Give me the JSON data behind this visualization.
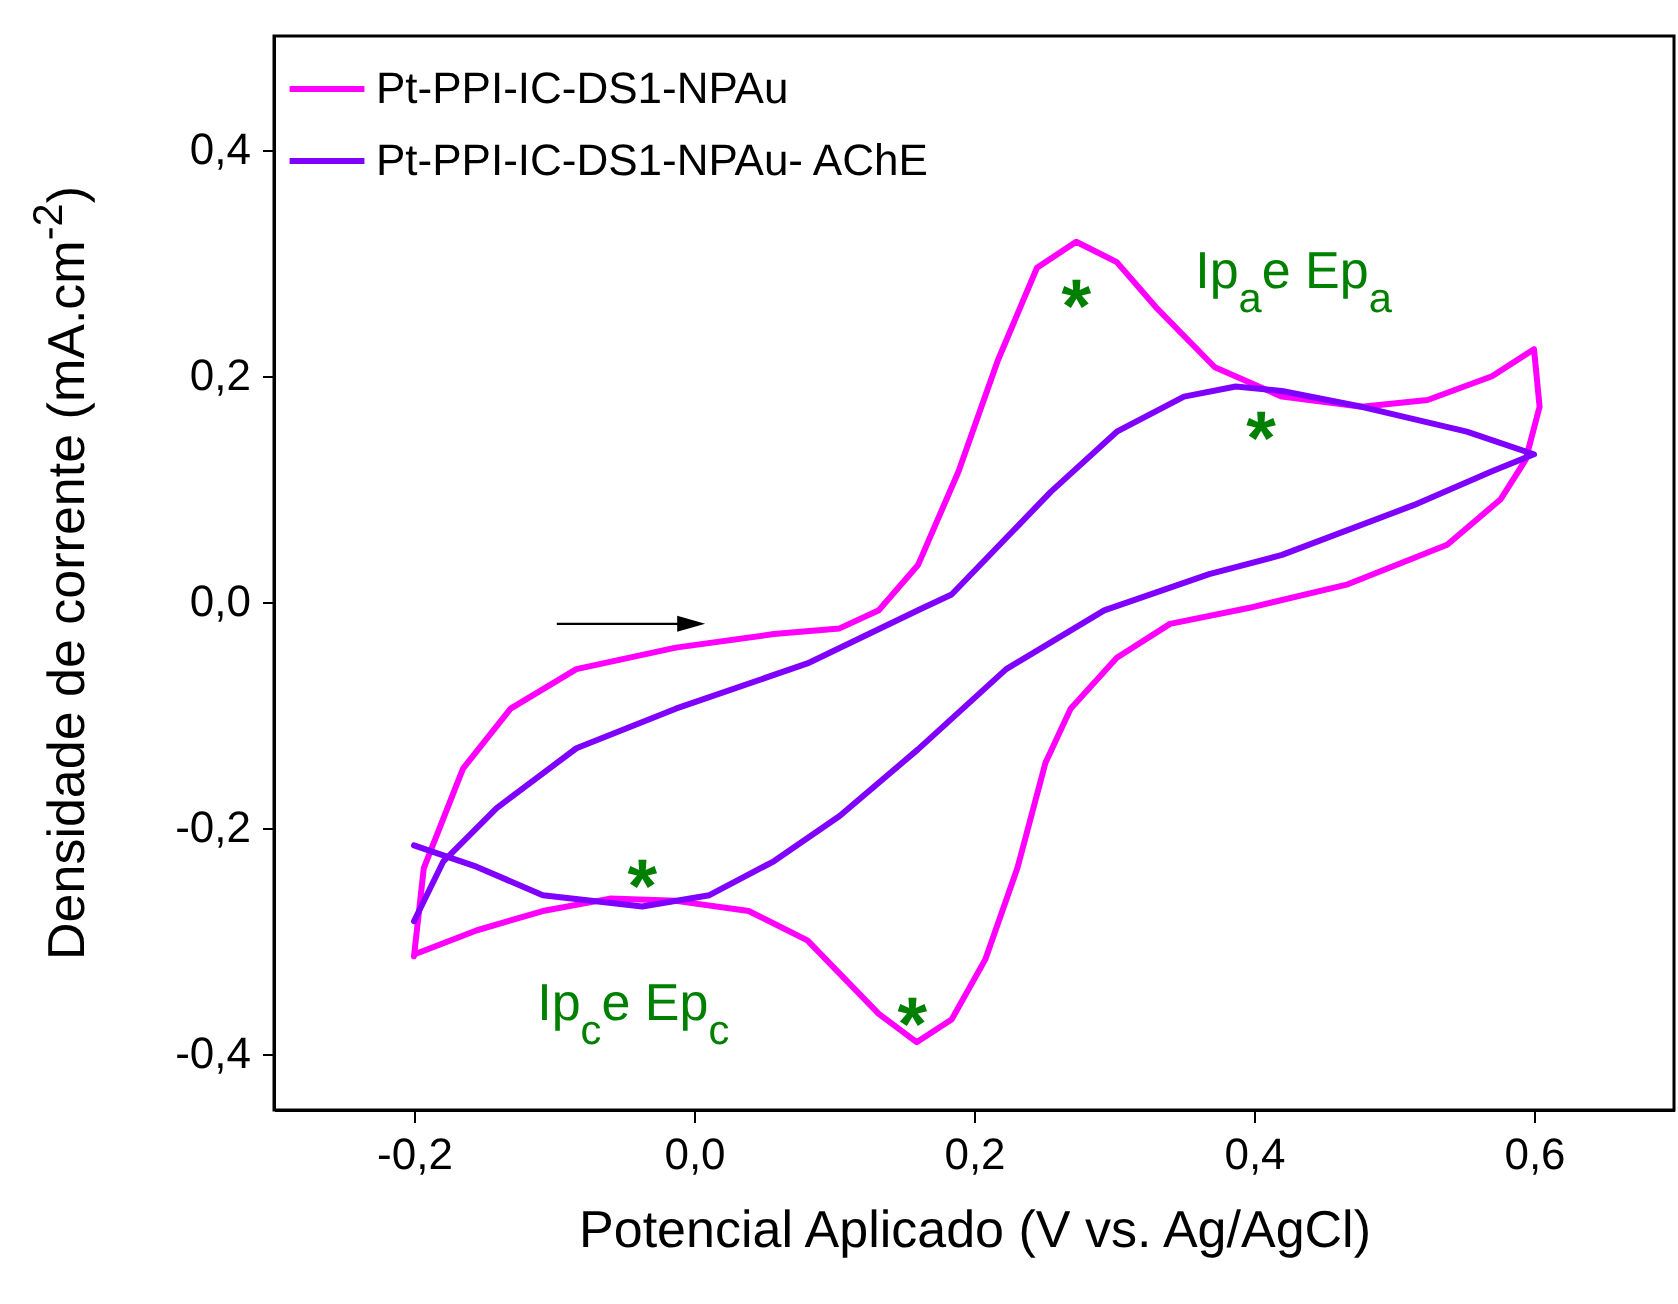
{
  "chart_data": {
    "type": "line",
    "xlabel": "Potencial Aplicado (V vs. Ag/AgCl)",
    "ylabel": "Densidade de corrente (mA.cm$^{-2}$)",
    "xlim": [
      -0.3,
      0.7
    ],
    "ylim": [
      -0.45,
      0.5
    ],
    "xticks": [
      {
        "value": -0.2,
        "label": "-0,2"
      },
      {
        "value": 0,
        "label": "0,0"
      },
      {
        "value": 0.2,
        "label": "0,2"
      },
      {
        "value": 0.4,
        "label": "0,4"
      },
      {
        "value": 0.6,
        "label": "0,6"
      }
    ],
    "yticks": [
      {
        "value": -0.4,
        "label": "-0,4"
      },
      {
        "value": -0.2,
        "label": "-0,2"
      },
      {
        "value": 0,
        "label": "0,0"
      },
      {
        "value": 0.2,
        "label": "0,2"
      },
      {
        "value": 0.4,
        "label": "0,4"
      }
    ],
    "grid": false,
    "legend": "top left",
    "marker": "none",
    "line_style": "solid",
    "series": [
      {
        "name": "Pt-PPI-IC-DS1-NPAu",
        "color": "#ff00ff",
        "x": [
          -0.2,
          -0.193,
          -0.165,
          -0.131,
          -0.084,
          -0.013,
          0.057,
          0.104,
          0.132,
          0.16,
          0.189,
          0.217,
          0.245,
          0.273,
          0.302,
          0.33,
          0.372,
          0.42,
          0.477,
          0.524,
          0.57,
          0.6,
          0.604,
          0.594,
          0.576,
          0.538,
          0.467,
          0.396,
          0.34,
          0.302,
          0.269,
          0.251,
          0.231,
          0.208,
          0.184,
          0.159,
          0.132,
          0.081,
          0.039,
          -0.013,
          -0.06,
          -0.108,
          -0.155,
          -0.199
        ],
        "values": [
          -0.314,
          -0.236,
          -0.148,
          -0.095,
          -0.06,
          -0.041,
          -0.029,
          -0.024,
          -0.008,
          0.032,
          0.115,
          0.213,
          0.295,
          0.318,
          0.3,
          0.26,
          0.207,
          0.181,
          0.172,
          0.178,
          0.199,
          0.223,
          0.172,
          0.125,
          0.09,
          0.05,
          0.015,
          -0.006,
          -0.02,
          -0.05,
          -0.095,
          -0.143,
          -0.236,
          -0.317,
          -0.37,
          -0.39,
          -0.365,
          -0.3,
          -0.274,
          -0.265,
          -0.263,
          -0.274,
          -0.291,
          -0.312
        ]
      },
      {
        "name": "Pt-PPI-IC-DS1-NPAu- AChE",
        "color": "#7f00ff",
        "x": [
          -0.2,
          -0.155,
          -0.108,
          -0.037,
          0.011,
          0.057,
          0.104,
          0.16,
          0.223,
          0.293,
          0.368,
          0.42,
          0.514,
          0.57,
          0.6,
          0.552,
          0.477,
          0.42,
          0.387,
          0.35,
          0.302,
          0.255,
          0.184,
          0.16,
          0.081,
          -0.013,
          -0.084,
          -0.141,
          -0.179,
          -0.2
        ],
        "values": [
          -0.216,
          -0.235,
          -0.26,
          -0.27,
          -0.26,
          -0.23,
          -0.19,
          -0.131,
          -0.06,
          -0.008,
          0.024,
          0.041,
          0.085,
          0.115,
          0.13,
          0.15,
          0.172,
          0.186,
          0.19,
          0.181,
          0.15,
          0.097,
          0.006,
          -0.008,
          -0.055,
          -0.095,
          -0.13,
          -0.183,
          -0.23,
          -0.283
        ]
      }
    ],
    "annotations": [
      "*",
      "*",
      "*",
      "*",
      "Ip$_{a}$e Ep$_{a}$",
      "Ip$_{c}$e Ep$_{c}$"
    ]
  }
}
